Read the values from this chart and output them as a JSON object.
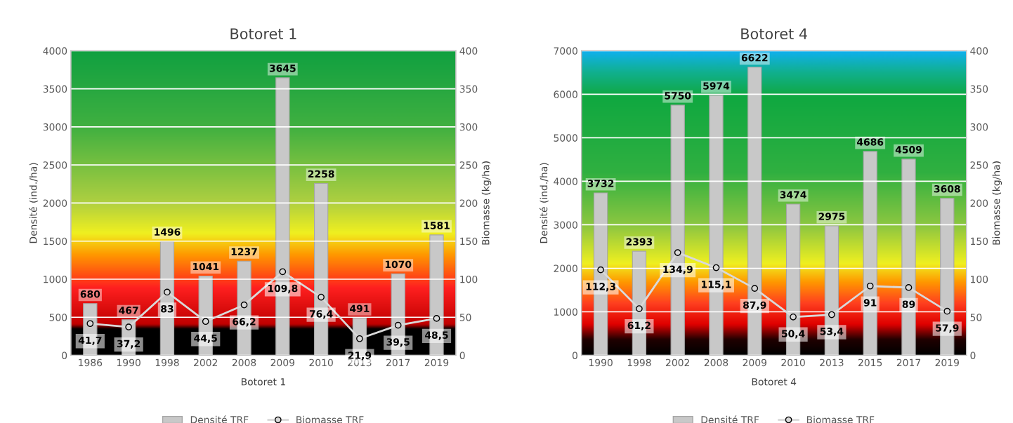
{
  "chart_data": [
    {
      "type": "bar",
      "title": "Botoret 1",
      "xlabel": "Botoret 1",
      "ylabel": "Densité (ind./ha)",
      "y2label": "Biomasse (kg/ha)",
      "categories": [
        "1986",
        "1990",
        "1998",
        "2002",
        "2008",
        "2009",
        "2010",
        "2013",
        "2017",
        "2019"
      ],
      "series": [
        {
          "name": "Densité TRF",
          "color": "#c8c8c8",
          "values": [
            680,
            467,
            1496,
            1041,
            1237,
            3645,
            2258,
            491,
            1070,
            1581
          ]
        },
        {
          "name": "Biomasse TRF",
          "type": "line",
          "axis": "y2",
          "color": "#d9d9d9",
          "values": [
            41.7,
            37.2,
            83,
            44.5,
            66.2,
            109.8,
            76.4,
            21.9,
            39.5,
            48.5
          ],
          "value_labels": [
            "41,7",
            "37,2",
            "83",
            "44,5",
            "66,2",
            "109,8",
            "76,4",
            "21,9",
            "39,5",
            "48,5"
          ]
        }
      ],
      "ylim": [
        0,
        4000
      ],
      "yticks": [
        0,
        500,
        1000,
        1500,
        2000,
        2500,
        3000,
        3500,
        4000
      ],
      "y2lim": [
        0,
        400
      ],
      "y2ticks": [
        0,
        50,
        100,
        150,
        200,
        250,
        300,
        350,
        400
      ],
      "grid": "y",
      "legend": "bottom",
      "marker": "circle",
      "data_labels": true
    },
    {
      "type": "bar",
      "title": "Botoret 4",
      "xlabel": "Botoret 4",
      "ylabel": "Densité (ind./ha)",
      "y2label": "Biomasse (kg/ha)",
      "categories": [
        "1990",
        "1998",
        "2002",
        "2008",
        "2009",
        "2010",
        "2013",
        "2015",
        "2017",
        "2019"
      ],
      "series": [
        {
          "name": "Densité TRF",
          "color": "#c8c8c8",
          "values": [
            3732,
            2393,
            5750,
            5974,
            6622,
            3474,
            2975,
            4686,
            4509,
            3608
          ]
        },
        {
          "name": "Biomasse TRF",
          "type": "line",
          "axis": "y2",
          "color": "#d9d9d9",
          "values": [
            112.3,
            61.2,
            134.9,
            115.1,
            87.9,
            50.4,
            53.4,
            91,
            89,
            57.9
          ],
          "value_labels": [
            "112,3",
            "61,2",
            "134,9",
            "115,1",
            "87,9",
            "50,4",
            "53,4",
            "91",
            "89",
            "57,9"
          ]
        }
      ],
      "ylim": [
        0,
        7000
      ],
      "yticks": [
        0,
        1000,
        2000,
        3000,
        4000,
        5000,
        6000,
        7000
      ],
      "y2lim": [
        0,
        400
      ],
      "y2ticks": [
        0,
        50,
        100,
        150,
        200,
        250,
        300,
        350,
        400
      ],
      "grid": "y",
      "legend": "bottom",
      "marker": "circle",
      "data_labels": true
    }
  ]
}
